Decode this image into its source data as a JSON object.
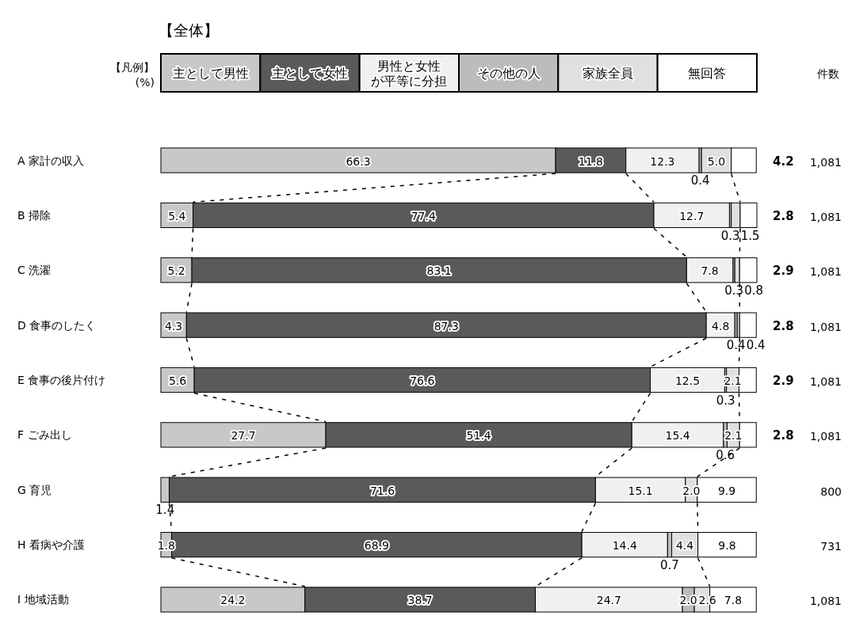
{
  "chart_data": {
    "type": "bar",
    "orientation": "horizontal",
    "stacked": true,
    "title": "【全体】",
    "legend_title": "【凡例】\n(%)",
    "legend": "top",
    "tick_labels": "y",
    "xlim": [
      0,
      100.1
    ],
    "categories": [
      "A 家計の収入",
      "B 掃除",
      "C 洗濯",
      "D 食事のしたく",
      "E 食事の後片付け",
      "F ごみ出し",
      "G 育児",
      "H 看病や介護",
      "I 地域活動"
    ],
    "annotations": [
      "件数"
    ],
    "y2_categories": [
      "1,081",
      "1,081",
      "1,081",
      "1,081",
      "1,081",
      "1,081",
      "800",
      "731",
      "1,081"
    ],
    "series": [
      {
        "name": "主として男性",
        "color": "#c8c8c8",
        "values": [
          66.3,
          5.4,
          5.2,
          4.3,
          5.6,
          27.7,
          1.4,
          1.8,
          24.2
        ],
        "value_labels": [
          "66.3",
          "5.4",
          "5.2",
          "4.3",
          "5.6",
          "27.7",
          "1.4",
          "1.8",
          "24.2"
        ]
      },
      {
        "name": "主として女性",
        "color": "#5a5a5a",
        "values": [
          11.8,
          77.4,
          83.1,
          87.3,
          76.6,
          51.4,
          71.6,
          68.9,
          38.7
        ],
        "value_labels": [
          "11.8",
          "77.4",
          "83.1",
          "87.3",
          "76.6",
          "51.4",
          "71.6",
          "68.9",
          "38.7"
        ]
      },
      {
        "name": "男性と女性が平等に分担",
        "color": "#f0f0f0",
        "values": [
          12.3,
          12.7,
          7.8,
          4.8,
          12.5,
          15.4,
          15.1,
          14.4,
          24.7
        ],
        "value_labels": [
          "12.3",
          "12.7",
          "7.8",
          "4.8",
          "12.5",
          "15.4",
          "15.1",
          "14.4",
          "24.7"
        ]
      },
      {
        "name": "その他の人",
        "color": "#bcbcbc",
        "values": [
          0.4,
          0.3,
          0.3,
          0.4,
          0.3,
          0.6,
          null,
          0.7,
          2.0
        ],
        "value_labels": [
          "0.4",
          "0.3",
          "0.3",
          "0.4",
          "0.3",
          "0.6",
          null,
          "0.7",
          "2.0"
        ]
      },
      {
        "name": "家族全員",
        "color": "#e0e0e0",
        "values": [
          5.0,
          1.5,
          0.8,
          0.4,
          2.1,
          2.1,
          2.0,
          4.4,
          2.6
        ],
        "value_labels": [
          "5.0",
          "1.5",
          "0.8",
          "0.4",
          "2.1",
          "2.1",
          "2.0",
          "4.4",
          "2.6"
        ]
      },
      {
        "name": "無回答",
        "color": "#ffffff",
        "values": [
          4.2,
          2.8,
          2.9,
          2.8,
          2.9,
          2.8,
          9.9,
          9.8,
          7.8
        ],
        "value_labels": [
          "4.2",
          "2.8",
          "2.9",
          "2.8",
          "2.9",
          "2.8",
          "9.9",
          "9.8",
          "7.8"
        ]
      }
    ]
  }
}
